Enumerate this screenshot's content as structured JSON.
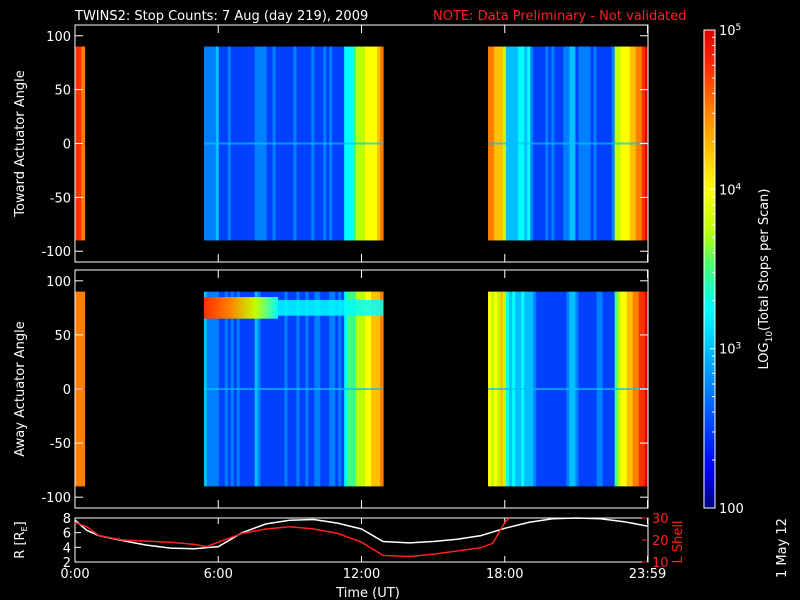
{
  "header": {
    "title": "TWINS2: Stop Counts:  7 Aug (day 219), 2009",
    "note": "NOTE: Data Preliminary - Not validated"
  },
  "colors": {
    "background": "#000000",
    "axes": "#ffffff",
    "note_red": "#ff2020",
    "r_line": "#ffffff",
    "lshell_line": "#ff2020",
    "colormap": [
      "#00007a",
      "#0000ff",
      "#0040ff",
      "#0080ff",
      "#00c0ff",
      "#00ffff",
      "#40ff80",
      "#c0ff00",
      "#ffff00",
      "#ffc000",
      "#ff8000",
      "#ff3000",
      "#e00000"
    ]
  },
  "colorbar": {
    "label": "LOG10(Total Stops per Scan)",
    "label_main": "LOG",
    "label_sub": "10",
    "label_rest": "(Total Stops per Scan)",
    "scale": "log",
    "range": [
      100,
      100000
    ],
    "ticks": [
      {
        "value": 100,
        "label": "100"
      },
      {
        "value": 1000,
        "label": "10",
        "sup": "3"
      },
      {
        "value": 10000,
        "label": "10",
        "sup": "4"
      },
      {
        "value": 100000,
        "label": "10",
        "sup": "5"
      }
    ]
  },
  "footer": {
    "date_stamp": "1 May 12"
  },
  "chart_data": [
    {
      "type": "heatmap",
      "panel": "top",
      "ylabel": "Toward Actuator Angle",
      "ylim": [
        -110,
        110
      ],
      "yticks": [
        100,
        50,
        0,
        -50,
        -100
      ],
      "xlim": [
        0,
        24
      ],
      "angle_range_with_data": [
        -90,
        90
      ],
      "data_intervals_hours": [
        [
          0.0,
          0.4
        ],
        [
          5.4,
          12.9
        ],
        [
          17.3,
          23.99
        ]
      ],
      "typical_log10_counts": [
        {
          "interval": [
            0.0,
            0.4
          ],
          "value": 4.4
        },
        {
          "interval": [
            5.4,
            12.9
          ],
          "value": 2.6
        },
        {
          "interval": [
            17.3,
            23.99
          ],
          "value": 2.7
        }
      ]
    },
    {
      "type": "heatmap",
      "panel": "middle",
      "ylabel": "Away Actuator Angle",
      "ylim": [
        -110,
        110
      ],
      "yticks": [
        100,
        50,
        0,
        -50,
        -100
      ],
      "xlim": [
        0,
        24
      ],
      "angle_range_with_data": [
        -90,
        90
      ],
      "data_intervals_hours": [
        [
          0.0,
          0.4
        ],
        [
          5.4,
          12.9
        ],
        [
          17.3,
          23.99
        ]
      ],
      "high_count_band": {
        "angle_range": [
          65,
          85
        ],
        "hours": [
          5.4,
          8.5
        ],
        "log10_value": 4.6
      }
    },
    {
      "type": "line",
      "panel": "bottom",
      "xlabel": "Time (UT)",
      "xticks": [
        "0:00",
        "6:00",
        "12:00",
        "18:00",
        "23:59"
      ],
      "xtick_hours": [
        0,
        6,
        12,
        18,
        23.98
      ],
      "ylabel_left": "R [RE]",
      "ylabel_left_main": "R [R",
      "ylabel_left_sub": "E",
      "ylabel_left_end": "]",
      "yticks_left": [
        2,
        4,
        6,
        8
      ],
      "ylim_left": [
        2,
        8
      ],
      "ylabel_right": "L Shell",
      "yticks_right": [
        10,
        20,
        30
      ],
      "ylim_right": [
        10,
        30
      ],
      "series": [
        {
          "name": "R",
          "axis": "left",
          "x": [
            0,
            0.5,
            1,
            2,
            3,
            4,
            5,
            6,
            7,
            8,
            9,
            10,
            11,
            12,
            12.9,
            14,
            15,
            16,
            17,
            18,
            19,
            20,
            21,
            22,
            23,
            23.98
          ],
          "y": [
            7.7,
            6.3,
            5.6,
            4.9,
            4.3,
            3.9,
            3.8,
            4.1,
            6.0,
            7.2,
            7.7,
            7.8,
            7.3,
            6.5,
            4.8,
            4.6,
            4.8,
            5.1,
            5.6,
            6.6,
            7.4,
            7.9,
            8.0,
            7.9,
            7.5,
            6.9
          ]
        },
        {
          "name": "L Shell",
          "axis": "right",
          "x": [
            0,
            0.5,
            1,
            2,
            3,
            4,
            5,
            5.5,
            6,
            7,
            8,
            9,
            10,
            11,
            12,
            12.9,
            14,
            15,
            16,
            17,
            17.5,
            18,
            18.2
          ],
          "y": [
            28,
            26,
            22,
            20,
            19.5,
            19,
            18,
            17,
            19,
            23,
            25,
            26,
            25,
            23,
            19,
            13,
            12.5,
            13.5,
            15,
            16.5,
            18.5,
            28,
            31
          ]
        }
      ]
    }
  ]
}
